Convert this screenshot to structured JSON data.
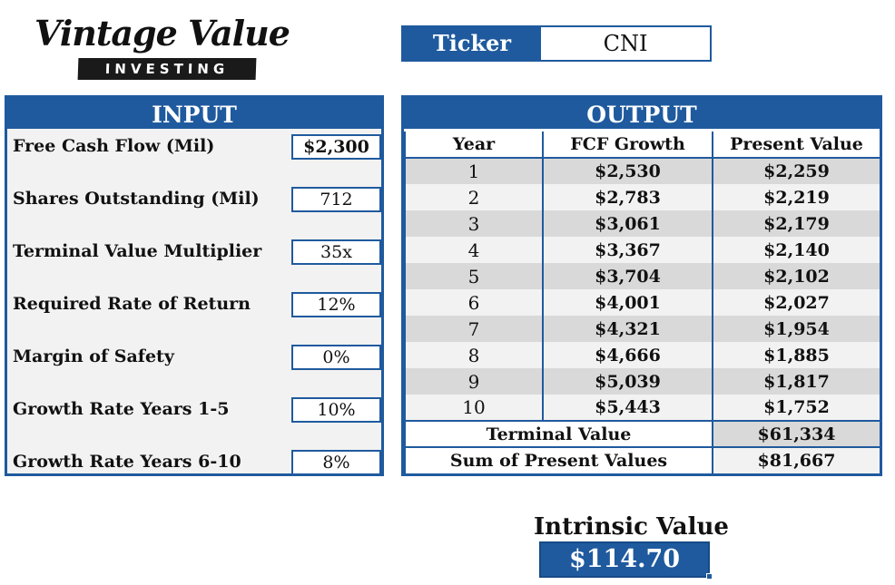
{
  "logo": {
    "script_text": "Vintage Value",
    "bar_text": "INVESTING"
  },
  "ticker": {
    "label": "Ticker",
    "value": "CNI"
  },
  "input": {
    "header": "INPUT",
    "rows": [
      {
        "label": "Free Cash Flow (Mil)",
        "value": "$2,300"
      },
      {
        "label": "Shares Outstanding (Mil)",
        "value": "712"
      },
      {
        "label": "Terminal Value Multiplier",
        "value": "35x"
      },
      {
        "label": "Required Rate of Return",
        "value": "12%"
      },
      {
        "label": "Margin of Safety",
        "value": "0%"
      },
      {
        "label": "Growth Rate Years 1-5",
        "value": "10%"
      },
      {
        "label": "Growth Rate Years 6-10",
        "value": "8%"
      }
    ]
  },
  "output": {
    "header": "OUTPUT",
    "columns": [
      "Year",
      "FCF Growth",
      "Present Value"
    ],
    "rows": [
      {
        "year": "1",
        "fcf": "$2,530",
        "pv": "$2,259"
      },
      {
        "year": "2",
        "fcf": "$2,783",
        "pv": "$2,219"
      },
      {
        "year": "3",
        "fcf": "$3,061",
        "pv": "$2,179"
      },
      {
        "year": "4",
        "fcf": "$3,367",
        "pv": "$2,140"
      },
      {
        "year": "5",
        "fcf": "$3,704",
        "pv": "$2,102"
      },
      {
        "year": "6",
        "fcf": "$4,001",
        "pv": "$2,027"
      },
      {
        "year": "7",
        "fcf": "$4,321",
        "pv": "$1,954"
      },
      {
        "year": "8",
        "fcf": "$4,666",
        "pv": "$1,885"
      },
      {
        "year": "9",
        "fcf": "$5,039",
        "pv": "$1,817"
      },
      {
        "year": "10",
        "fcf": "$5,443",
        "pv": "$1,752"
      }
    ],
    "terminal_label": "Terminal Value",
    "terminal_value": "$61,334",
    "sum_label": "Sum of Present Values",
    "sum_value": "$81,667"
  },
  "intrinsic": {
    "title": "Intrinsic Value",
    "value": "$114.70"
  },
  "colors": {
    "accent": "#1f5a9e",
    "shade": "#d9d9d9",
    "panel_bg": "#f2f2f2"
  }
}
